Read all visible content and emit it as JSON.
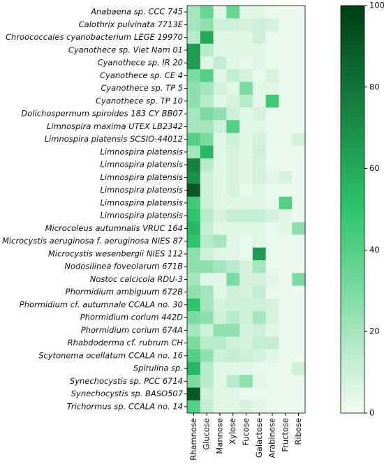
{
  "chart_data": {
    "type": "heatmap",
    "x": [
      "Rhamnose",
      "Glucose",
      "Mannose",
      "Xylose",
      "Fucose",
      "Galactose",
      "Arabinose",
      "Fructose",
      "Ribose"
    ],
    "y": [
      "Anabaena sp. CCC 745",
      "Calothrix pulvinata 7713E",
      "Chroococcales cyanobacterium LEGE 19970",
      "Cyanothece sp. Viet Nam 01",
      "Cyanothece sp. IR 20",
      "Cyanothece sp. CE 4",
      "Cyanothece sp. TP 5",
      "Cyanothece sp. TP 10",
      "Dolichospermum spiroides 183 CY BB07",
      "Limnospira maxima UTEX LB2342",
      "Limnospira platensis SCSIO-44012",
      "Limnospira platensis",
      "Limnospira platensis",
      "Limnospira platensis",
      "Limnospira platensis",
      "Limnospira platensis",
      "Limnospira platensis",
      "Microcoleus autumnalis VRUC 164",
      "Microcystis aeruginosa f. aeruginosa NIES 87",
      "Microcystis wesenbergii NIES 112",
      "Nodosilinea foveolarum 671B",
      "Nostoc calcicola RDU-3",
      "Phormidium ambiguum 672B",
      "Phormidium cf. autumnale CCALA no. 30",
      "Phormidium corium 442D",
      "Phormidium corium 674A",
      "Rhabdoderma cf. rubrum CH",
      "Scytonema ocellatum CCALA no. 16",
      "Spirulina sp.",
      "Synechocystis sp. PCC 6714",
      "Synechocystis sp. BASO507",
      "Trichormus sp. CCALA no. 14"
    ],
    "values": [
      [
        20,
        35,
        5,
        35,
        5,
        5,
        3,
        2,
        2
      ],
      [
        20,
        25,
        10,
        10,
        8,
        10,
        8,
        3,
        2
      ],
      [
        15,
        60,
        5,
        5,
        5,
        10,
        3,
        2,
        2
      ],
      [
        65,
        15,
        5,
        5,
        5,
        5,
        3,
        2,
        2
      ],
      [
        65,
        5,
        12,
        5,
        3,
        5,
        3,
        2,
        2
      ],
      [
        30,
        40,
        5,
        12,
        8,
        3,
        8,
        2,
        2
      ],
      [
        25,
        20,
        8,
        5,
        30,
        5,
        5,
        2,
        2
      ],
      [
        25,
        15,
        5,
        8,
        15,
        5,
        45,
        2,
        2
      ],
      [
        20,
        30,
        25,
        10,
        5,
        8,
        3,
        2,
        2
      ],
      [
        20,
        20,
        10,
        40,
        5,
        5,
        3,
        2,
        2
      ],
      [
        40,
        30,
        5,
        10,
        5,
        8,
        3,
        3,
        8
      ],
      [
        20,
        55,
        5,
        8,
        5,
        10,
        3,
        2,
        2
      ],
      [
        75,
        15,
        5,
        8,
        5,
        8,
        3,
        2,
        2
      ],
      [
        70,
        10,
        5,
        8,
        5,
        8,
        5,
        8,
        2
      ],
      [
        90,
        10,
        5,
        8,
        3,
        5,
        3,
        2,
        2
      ],
      [
        45,
        10,
        5,
        5,
        5,
        5,
        3,
        40,
        2
      ],
      [
        50,
        15,
        8,
        12,
        12,
        12,
        8,
        5,
        2
      ],
      [
        55,
        12,
        5,
        5,
        5,
        5,
        3,
        5,
        25
      ],
      [
        50,
        15,
        20,
        5,
        3,
        5,
        3,
        2,
        2
      ],
      [
        25,
        10,
        5,
        5,
        3,
        65,
        3,
        2,
        2
      ],
      [
        25,
        25,
        20,
        15,
        8,
        20,
        3,
        2,
        2
      ],
      [
        20,
        5,
        5,
        30,
        8,
        8,
        5,
        2,
        30
      ],
      [
        25,
        20,
        5,
        10,
        8,
        12,
        3,
        2,
        2
      ],
      [
        50,
        20,
        8,
        10,
        10,
        10,
        8,
        2,
        2
      ],
      [
        30,
        25,
        10,
        15,
        10,
        20,
        8,
        2,
        2
      ],
      [
        20,
        10,
        25,
        25,
        8,
        10,
        5,
        2,
        2
      ],
      [
        30,
        15,
        15,
        10,
        8,
        12,
        12,
        3,
        2
      ],
      [
        40,
        25,
        10,
        12,
        10,
        8,
        5,
        2,
        2
      ],
      [
        55,
        15,
        5,
        5,
        5,
        3,
        3,
        2,
        10
      ],
      [
        30,
        15,
        5,
        15,
        25,
        5,
        3,
        2,
        2
      ],
      [
        90,
        10,
        5,
        5,
        3,
        3,
        3,
        2,
        2
      ],
      [
        40,
        12,
        5,
        5,
        8,
        5,
        3,
        2,
        2
      ]
    ],
    "zlim": [
      0,
      100
    ],
    "zticks": [
      0,
      20,
      40,
      60,
      80,
      100
    ],
    "colorscale": [
      "#f4fbf4",
      "#2cc56a",
      "#003d15"
    ]
  }
}
